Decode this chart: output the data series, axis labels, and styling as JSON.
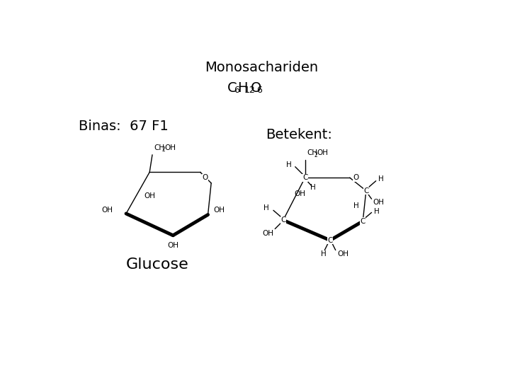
{
  "title": "Monosachariden",
  "binas_text": "Binas:  67 F1",
  "betekent_text": "Betekent:",
  "glucose_text": "Glucose",
  "bg_color": "#ffffff",
  "text_color": "#000000",
  "title_fontsize": 14,
  "binas_fontsize": 14,
  "betekent_fontsize": 14,
  "glucose_fontsize": 16,
  "formula_fontsize": 14,
  "formula_sub_fontsize": 9,
  "chem_fontsize": 7.5,
  "chem_sub_fontsize": 5.5
}
